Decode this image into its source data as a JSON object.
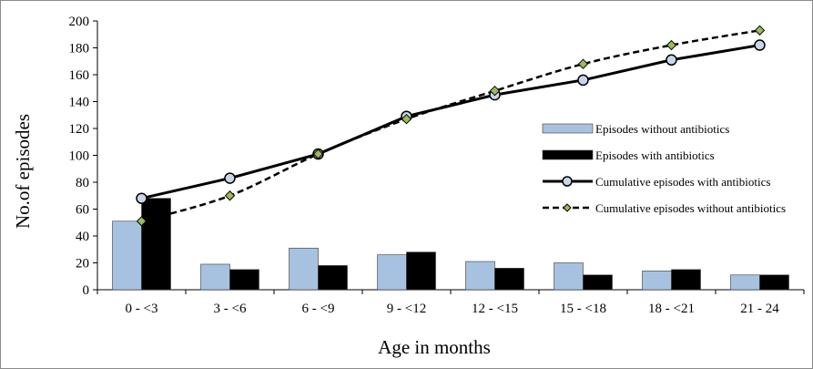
{
  "chart_data": {
    "type": "bar",
    "xlabel": "Age in months",
    "ylabel": "No.of episodes",
    "ylim": [
      0,
      200
    ],
    "yticks": [
      0,
      20,
      40,
      60,
      80,
      100,
      120,
      140,
      160,
      180,
      200
    ],
    "categories": [
      "0 - <3",
      "3 - <6",
      "6 - <9",
      "9 - <12",
      "12 - <15",
      "15 - <18",
      "18 - <21",
      "21 - 24"
    ],
    "grid": false,
    "legend_position": "right",
    "series": [
      {
        "name": "Episodes without antibiotics",
        "kind": "bar",
        "color": "#a7c2e0",
        "values": [
          51,
          19,
          31,
          26,
          21,
          20,
          14,
          11
        ]
      },
      {
        "name": "Episodes with  antibiotics",
        "kind": "bar",
        "color": "#000000",
        "values": [
          68,
          15,
          18,
          28,
          16,
          11,
          15,
          11
        ]
      },
      {
        "name": "Cumulative episodes with antibiotics",
        "kind": "line",
        "style": "solid",
        "marker": "circle",
        "color": "#000000",
        "marker_fill": "#c9d6ea",
        "values": [
          68,
          83,
          101,
          129,
          145,
          156,
          171,
          182
        ]
      },
      {
        "name": "Cumulative episodes without antibiotics",
        "kind": "line",
        "style": "dashed",
        "marker": "diamond",
        "color": "#000000",
        "marker_fill": "#9bbb59",
        "values": [
          51,
          70,
          101,
          127,
          148,
          168,
          182,
          193
        ]
      }
    ]
  }
}
